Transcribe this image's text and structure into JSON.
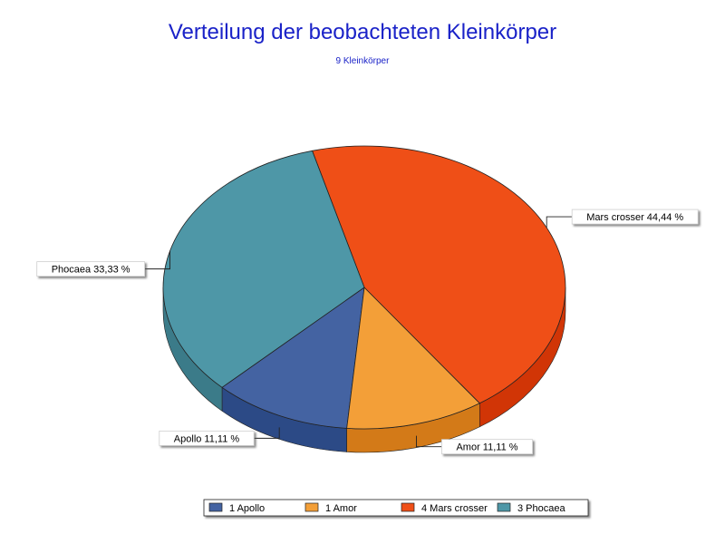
{
  "chart_data": {
    "type": "pie",
    "title": "Verteilung der beobachteten Kleinkörper",
    "subtitle": "9 Kleinkörper",
    "slices": [
      {
        "name": "Apollo",
        "count": 1,
        "percent_label": "Apollo 11,11 %",
        "legend_label": "1 Apollo",
        "value": 11.11,
        "color": "#4463a2",
        "side_color": "#2c4a86"
      },
      {
        "name": "Amor",
        "count": 1,
        "percent_label": "Amor 11,11 %",
        "legend_label": "1 Amor",
        "value": 11.11,
        "color": "#f39f38",
        "side_color": "#d37a18"
      },
      {
        "name": "Mars crosser",
        "count": 4,
        "percent_label": "Mars crosser 44,44 %",
        "legend_label": "4 Mars crosser",
        "value": 44.44,
        "color": "#ef4f17",
        "side_color": "#d13506"
      },
      {
        "name": "Phocaea",
        "count": 3,
        "percent_label": "Phocaea 33,33 %",
        "legend_label": "3 Phocaea",
        "value": 33.33,
        "color": "#4e97a7",
        "side_color": "#3b7b89"
      }
    ],
    "legend_position": "bottom"
  }
}
